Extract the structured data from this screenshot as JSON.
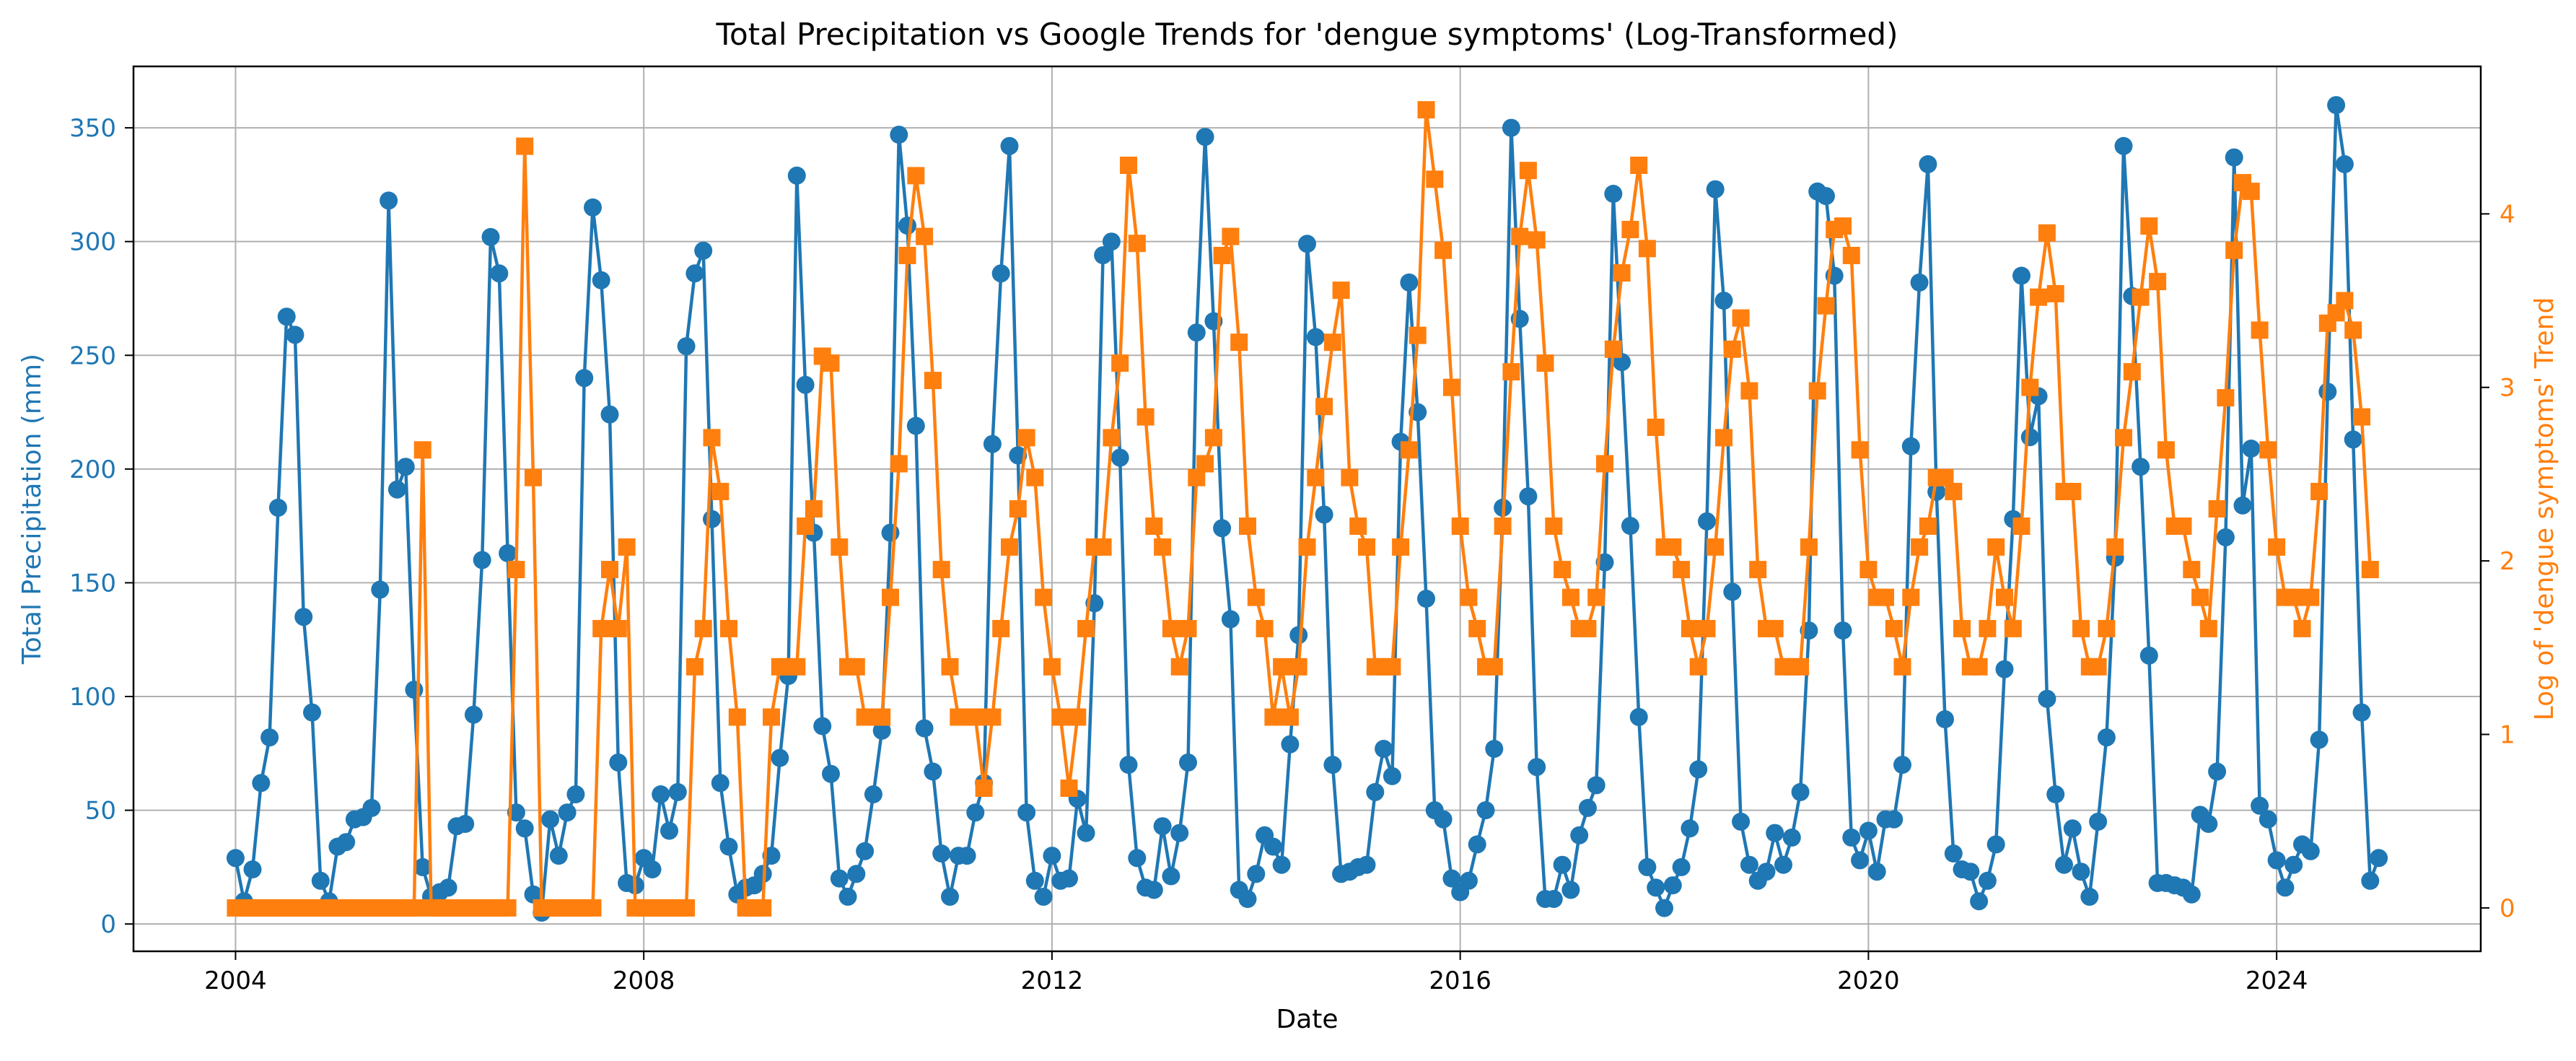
{
  "chart_data": {
    "type": "line",
    "title": "Total Precipitation vs Google Trends for 'dengue symptoms' (Log-Transformed)",
    "xlabel": "Date",
    "ylabel_left": "Total Precipitation (mm)",
    "ylabel_right": "Log of 'dengue symptoms' Trend",
    "x_ticks": [
      "2004",
      "2008",
      "2012",
      "2016",
      "2020",
      "2024"
    ],
    "y_left_ticks": [
      "0",
      "50",
      "100",
      "150",
      "200",
      "250",
      "300",
      "350"
    ],
    "y_right_ticks": [
      "0",
      "1",
      "2",
      "3",
      "4"
    ],
    "y_left_range": [
      -12,
      377
    ],
    "y_right_range": [
      -0.25,
      4.85
    ],
    "x_range": [
      "2003-01-01",
      "2026-01-01"
    ],
    "grid": true,
    "colors": {
      "precip": "#1f77b4",
      "trend": "#ff7f0e",
      "grid": "#b0b0b0",
      "text": "#000000"
    },
    "series": [
      {
        "axis": "left",
        "marker": "circle",
        "start": "2004-01",
        "values": [
          29,
          10,
          24,
          62,
          82,
          183,
          267,
          259,
          135,
          93,
          19,
          10,
          34,
          36,
          46,
          47,
          51,
          147,
          318,
          191,
          201,
          103,
          25,
          12,
          14,
          16,
          43,
          44,
          92,
          160,
          302,
          286,
          163,
          49,
          42,
          13,
          5,
          46,
          30,
          49,
          57,
          240,
          315,
          283,
          224,
          71,
          18,
          17,
          29,
          24,
          57,
          41,
          58,
          254,
          286,
          296,
          178,
          62,
          34,
          13,
          16,
          17,
          22,
          30,
          73,
          109,
          329,
          237,
          172,
          87,
          66,
          20,
          12,
          22,
          32,
          57,
          85,
          172,
          347,
          307,
          219,
          86,
          67,
          31,
          12,
          30,
          30,
          49,
          62,
          211,
          286,
          342,
          206,
          49,
          19,
          12,
          30,
          19,
          20,
          55,
          40,
          141,
          294,
          300,
          205,
          70,
          29,
          16,
          15,
          43,
          21,
          40,
          71,
          260,
          346,
          265,
          174,
          134,
          15,
          11,
          22,
          39,
          34,
          26,
          79,
          127,
          299,
          258,
          180,
          70,
          22,
          23,
          25,
          26,
          58,
          77,
          65,
          212,
          282,
          225,
          143,
          50,
          46,
          20,
          14,
          19,
          35,
          50,
          77,
          183,
          350,
          266,
          188,
          69,
          11,
          11,
          26,
          15,
          39,
          51,
          61,
          159,
          321,
          247,
          175,
          91,
          25,
          16,
          7,
          17,
          25,
          42,
          68,
          177,
          323,
          274,
          146,
          45,
          26,
          19,
          23,
          40,
          26,
          38,
          58,
          129,
          322,
          320,
          285,
          129,
          38,
          28,
          41,
          23,
          46,
          46,
          70,
          210,
          282,
          334,
          190,
          90,
          31,
          24,
          23,
          10,
          19,
          35,
          112,
          178,
          285,
          214,
          232,
          99,
          57,
          26,
          42,
          23,
          12,
          45,
          82,
          161,
          342,
          276,
          201,
          118,
          18,
          18,
          17,
          16,
          13,
          48,
          44,
          67,
          170,
          337,
          184,
          209,
          52,
          46,
          28,
          16,
          26,
          35,
          32,
          81,
          234,
          360,
          334,
          213,
          93,
          19,
          29
        ]
      },
      {
        "axis": "right",
        "marker": "square",
        "start": "2004-01",
        "values": [
          0,
          0,
          0,
          0,
          0,
          0,
          0,
          0,
          0,
          0,
          0,
          0,
          0,
          0,
          0,
          0,
          0,
          0,
          0,
          0,
          0,
          0,
          2.64,
          0,
          0,
          0,
          0,
          0,
          0,
          0,
          0,
          0,
          0,
          1.95,
          4.39,
          2.48,
          0,
          0,
          0,
          0,
          0,
          0,
          0,
          1.61,
          1.95,
          1.61,
          2.08,
          0,
          0,
          0,
          0,
          0,
          0,
          0,
          1.39,
          1.61,
          2.71,
          2.4,
          1.61,
          1.1,
          0,
          0,
          0,
          1.1,
          1.39,
          1.39,
          1.39,
          2.2,
          2.3,
          3.18,
          3.14,
          2.08,
          1.39,
          1.39,
          1.1,
          1.1,
          1.1,
          1.79,
          2.56,
          3.76,
          4.22,
          3.87,
          3.04,
          1.95,
          1.39,
          1.1,
          1.1,
          1.1,
          0.69,
          1.1,
          1.61,
          2.08,
          2.3,
          2.71,
          2.48,
          1.79,
          1.39,
          1.1,
          0.69,
          1.1,
          1.61,
          2.08,
          2.08,
          2.71,
          3.14,
          4.28,
          3.83,
          2.83,
          2.2,
          2.08,
          1.61,
          1.39,
          1.61,
          2.48,
          2.56,
          2.71,
          3.76,
          3.87,
          3.26,
          2.2,
          1.79,
          1.61,
          1.1,
          1.39,
          1.1,
          1.39,
          2.08,
          2.48,
          2.89,
          3.26,
          3.56,
          2.48,
          2.2,
          2.08,
          1.39,
          1.39,
          1.39,
          2.08,
          2.64,
          3.3,
          4.6,
          4.2,
          3.79,
          3.0,
          2.2,
          1.79,
          1.61,
          1.39,
          1.39,
          2.2,
          3.09,
          3.87,
          4.25,
          3.85,
          3.14,
          2.2,
          1.95,
          1.79,
          1.61,
          1.61,
          1.79,
          2.56,
          3.22,
          3.66,
          3.91,
          4.28,
          3.8,
          2.77,
          2.08,
          2.08,
          1.95,
          1.61,
          1.39,
          1.61,
          2.08,
          2.71,
          3.22,
          3.4,
          2.98,
          1.95,
          1.61,
          1.61,
          1.39,
          1.39,
          1.39,
          2.08,
          2.98,
          3.47,
          3.91,
          3.93,
          3.76,
          2.64,
          1.95,
          1.79,
          1.79,
          1.61,
          1.39,
          1.79,
          2.08,
          2.2,
          2.48,
          2.48,
          2.4,
          1.61,
          1.39,
          1.39,
          1.61,
          2.08,
          1.79,
          1.61,
          2.2,
          3.0,
          3.52,
          3.89,
          3.54,
          2.4,
          2.4,
          1.61,
          1.39,
          1.39,
          1.61,
          2.08,
          2.71,
          3.09,
          3.52,
          3.93,
          3.61,
          2.64,
          2.2,
          2.2,
          1.95,
          1.79,
          1.61,
          2.3,
          2.94,
          3.79,
          4.18,
          4.13,
          3.33,
          2.64,
          2.08,
          1.79,
          1.79,
          1.61,
          1.79,
          2.4,
          3.37,
          3.43,
          3.5,
          3.33,
          2.83,
          1.95
        ]
      }
    ]
  }
}
